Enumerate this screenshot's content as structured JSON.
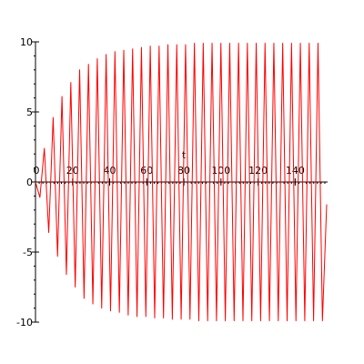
{
  "chart_data": {
    "type": "line",
    "title": "",
    "xlabel": "t",
    "ylabel": "",
    "xlim": [
      0,
      157
    ],
    "ylim": [
      -10,
      10
    ],
    "x_ticks": [
      0,
      20,
      40,
      60,
      80,
      100,
      120,
      140
    ],
    "x_tick_labels": [
      "0",
      "20",
      "40",
      "60",
      "80",
      "100",
      "120",
      "140"
    ],
    "y_ticks": [
      10,
      5,
      0,
      -5,
      -10
    ],
    "y_tick_labels": [
      "10",
      "5",
      "0",
      "-5",
      "-10"
    ],
    "x_minor_step": 2,
    "y_minor_step": 1,
    "grid": false,
    "legend": "none",
    "line_color": "#ff0000",
    "series": [
      {
        "name": "",
        "x": [
          0,
          2.38,
          4.76,
          7.14,
          9.52,
          11.9,
          14.28,
          16.66,
          19.04,
          21.42,
          23.8,
          26.18,
          28.56,
          30.94,
          33.32,
          35.7,
          38.08,
          40.46,
          42.84,
          45.22,
          47.6,
          49.98,
          52.36,
          54.74,
          57.12,
          59.5,
          61.88,
          64.26,
          66.64,
          69.02,
          71.4,
          73.78,
          76.16,
          78.54,
          80.92,
          83.3,
          85.68,
          88.06,
          90.44,
          92.82,
          95.2,
          97.58,
          99.96,
          102.34,
          104.72,
          107.1,
          109.48,
          111.86,
          114.24,
          116.62,
          119,
          121.38,
          123.76,
          126.14,
          128.52,
          130.9,
          133.28,
          135.66,
          138.04,
          140.42,
          142.8,
          145.18,
          147.56,
          149.94,
          152.32,
          154.7,
          157
        ],
        "y": [
          0,
          -1.1,
          2.4,
          -3.6,
          4.6,
          -5.3,
          6.1,
          -6.6,
          7.1,
          -7.5,
          8,
          -8.3,
          8.4,
          -8.7,
          8.8,
          -9,
          9.1,
          -9.2,
          9.3,
          -9.3,
          9.4,
          -9.5,
          9.5,
          -9.6,
          9.6,
          -9.6,
          9.7,
          -9.7,
          9.7,
          -9.7,
          9.8,
          -9.8,
          9.8,
          -9.8,
          9.8,
          -9.8,
          9.9,
          -9.9,
          9.9,
          -9.9,
          9.9,
          -9.9,
          9.9,
          -9.9,
          9.9,
          -9.9,
          9.9,
          -9.9,
          9.9,
          -9.9,
          9.9,
          -9.9,
          9.9,
          -9.9,
          9.9,
          -9.9,
          9.9,
          -9.9,
          9.9,
          -9.9,
          9.9,
          -9.9,
          9.9,
          -9.9,
          9.9,
          -9.9,
          -1.6
        ]
      }
    ]
  }
}
